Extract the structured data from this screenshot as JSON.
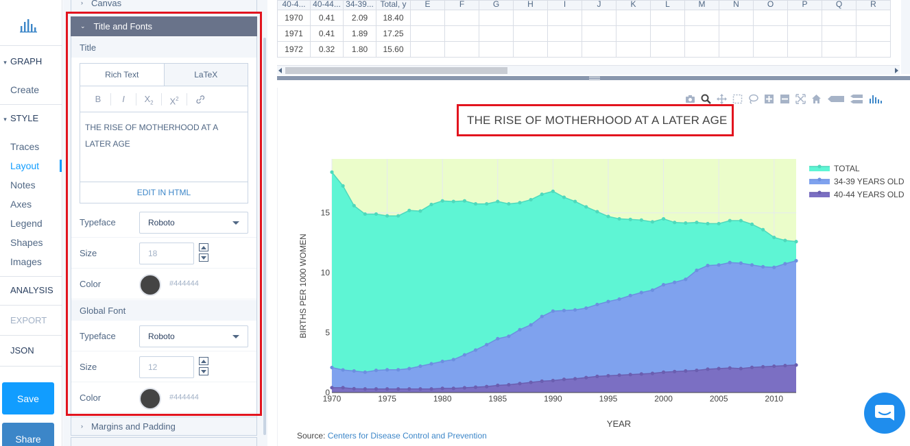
{
  "nav": {
    "graph": "GRAPH",
    "create": "Create",
    "style": "STYLE",
    "style_items": [
      "Traces",
      "Layout",
      "Notes",
      "Axes",
      "Legend",
      "Shapes",
      "Images"
    ],
    "analysis": "ANALYSIS",
    "export": "EXPORT",
    "json": "JSON",
    "save": "Save",
    "share": "Share",
    "active_item": "Layout",
    "accent_color": "#119dff"
  },
  "panel": {
    "canvas": "Canvas",
    "title_fonts": "Title and Fonts",
    "title_section": "Title",
    "tab_rich": "Rich Text",
    "tab_latex": "LaTeX",
    "toolbar": {
      "bold": "B",
      "italic": "I",
      "sub": "X",
      "sub_mark": "2",
      "sup": "X",
      "sup_mark": "2"
    },
    "title_text": "THE RISE OF MOTHERHOOD AT A LATER AGE",
    "edit_html": "EDIT IN HTML",
    "typeface_label": "Typeface",
    "title_typeface": "Roboto",
    "size_label": "Size",
    "title_size": "18",
    "color_label": "Color",
    "title_color": "#444444",
    "global_font": "Global Font",
    "global_typeface": "Roboto",
    "global_size": "12",
    "global_color": "#444444",
    "margins": "Margins and Padding"
  },
  "grid": {
    "headers": [
      "40-4...",
      "40-44...",
      "34-39...",
      "Total, y",
      "E",
      "F",
      "G",
      "H",
      "I",
      "J",
      "K",
      "L",
      "M",
      "N",
      "O",
      "P",
      "Q",
      "R"
    ],
    "rows": [
      [
        "1970",
        "0.41",
        "2.09",
        "18.40"
      ],
      [
        "1971",
        "0.41",
        "1.89",
        "17.25"
      ],
      [
        "1972",
        "0.32",
        "1.80",
        "15.60"
      ]
    ]
  },
  "chart_data": {
    "type": "area",
    "title": "THE RISE OF MOTHERHOOD AT A LATER AGE",
    "xlabel": "YEAR",
    "ylabel": "BIRTHS PER 1000 WOMEN",
    "xlim": [
      1970,
      2012
    ],
    "ylim": [
      0,
      19.5
    ],
    "x_ticks": [
      1970,
      1975,
      1980,
      1985,
      1990,
      1995,
      2000,
      2005,
      2010
    ],
    "y_ticks": [
      0,
      5,
      10,
      15
    ],
    "legend_position": "right",
    "x": [
      1970,
      1971,
      1972,
      1973,
      1974,
      1975,
      1976,
      1977,
      1978,
      1979,
      1980,
      1981,
      1982,
      1983,
      1984,
      1985,
      1986,
      1987,
      1988,
      1989,
      1990,
      1991,
      1992,
      1993,
      1994,
      1995,
      1996,
      1997,
      1998,
      1999,
      2000,
      2001,
      2002,
      2003,
      2004,
      2005,
      2006,
      2007,
      2008,
      2009,
      2010,
      2011,
      2012
    ],
    "series": [
      {
        "name": "TOTAL",
        "color": "#5ef5d4",
        "values": [
          18.4,
          17.25,
          15.6,
          14.9,
          14.9,
          14.75,
          14.75,
          15.2,
          15.15,
          15.7,
          16.0,
          15.95,
          16.0,
          15.75,
          15.75,
          15.95,
          15.75,
          15.85,
          16.1,
          16.55,
          16.8,
          16.3,
          15.95,
          15.5,
          15.1,
          14.7,
          14.5,
          14.45,
          14.4,
          14.25,
          14.5,
          14.2,
          14.15,
          14.2,
          14.1,
          14.1,
          14.35,
          14.35,
          14.05,
          13.6,
          12.95,
          12.7,
          12.6
        ]
      },
      {
        "name": "34-39 YEARS OLD",
        "color": "#7fa2ee",
        "values": [
          2.09,
          1.89,
          1.8,
          1.7,
          1.85,
          1.9,
          1.9,
          2.0,
          2.2,
          2.4,
          2.6,
          2.75,
          3.15,
          3.55,
          4.0,
          4.5,
          4.7,
          5.25,
          5.65,
          6.35,
          6.8,
          6.85,
          6.9,
          7.05,
          7.35,
          7.6,
          7.8,
          8.1,
          8.35,
          8.55,
          9.0,
          9.2,
          9.45,
          10.2,
          10.6,
          10.65,
          10.85,
          10.8,
          10.65,
          10.5,
          10.45,
          10.75,
          11.0
        ]
      },
      {
        "name": "40-44 YEARS OLD",
        "color": "#7b6fc3",
        "values": [
          0.41,
          0.41,
          0.32,
          0.3,
          0.3,
          0.3,
          0.3,
          0.3,
          0.3,
          0.3,
          0.35,
          0.35,
          0.4,
          0.45,
          0.5,
          0.6,
          0.65,
          0.75,
          0.85,
          0.95,
          1.0,
          1.1,
          1.15,
          1.25,
          1.35,
          1.4,
          1.45,
          1.5,
          1.55,
          1.6,
          1.7,
          1.75,
          1.8,
          1.85,
          1.95,
          2.0,
          2.05,
          2.0,
          2.1,
          2.15,
          2.2,
          2.25,
          2.3
        ]
      }
    ],
    "background_fill": "#ebfdca"
  },
  "source": {
    "label": "Source:",
    "link": "Centers for Disease Control and Prevention"
  }
}
